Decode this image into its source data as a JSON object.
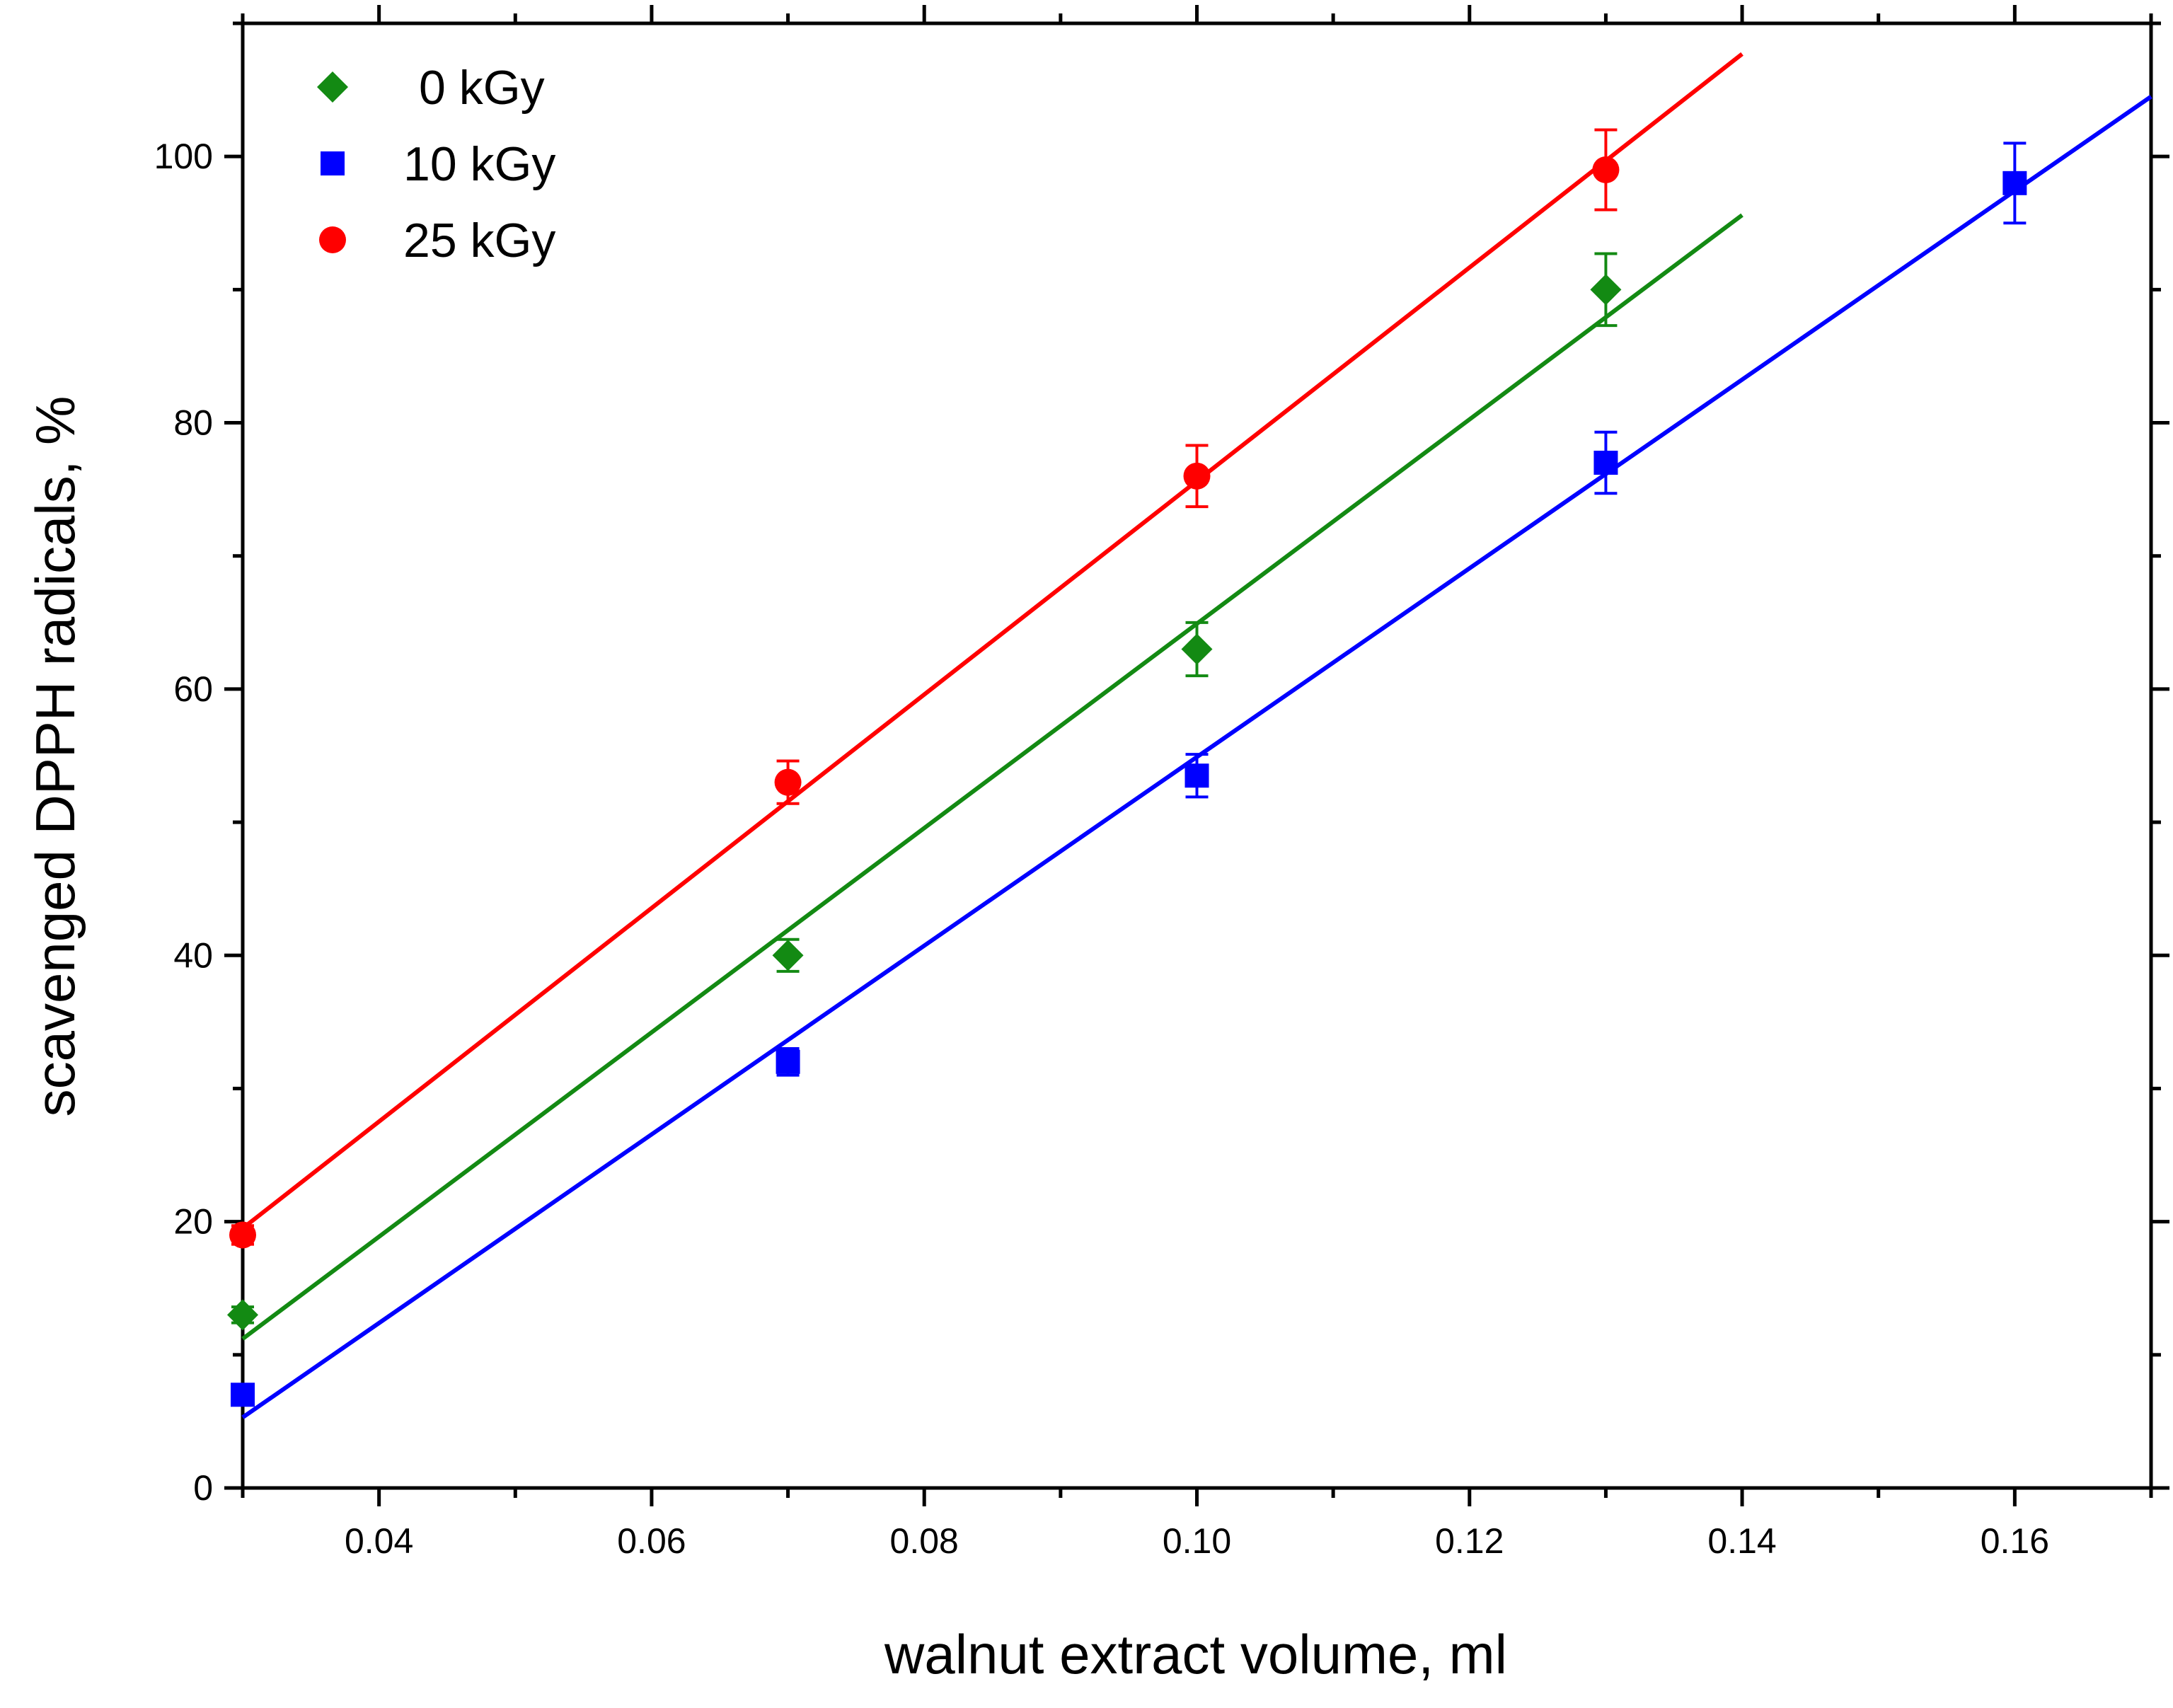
{
  "chart_data": {
    "type": "scatter",
    "title": "",
    "xlabel": "walnut extract volume, ml",
    "ylabel": "scavenged DPPH radicals,  %",
    "xlim": [
      0.03,
      0.17
    ],
    "ylim": [
      0,
      110
    ],
    "xticks": [
      0.04,
      0.06,
      0.08,
      0.1,
      0.12,
      0.14,
      0.16
    ],
    "xtick_labels": [
      "0.04",
      "0.06",
      "0.08",
      "0.10",
      "0.12",
      "0.14",
      "0.16"
    ],
    "yticks": [
      0,
      20,
      40,
      60,
      80,
      100
    ],
    "ytick_labels": [
      "0",
      "20",
      "40",
      "60",
      "80",
      "100"
    ],
    "grid": false,
    "legend_position": "top-left",
    "series": [
      {
        "name": "0 kGy",
        "marker": "diamond",
        "color": "#138a13",
        "x": [
          0.03,
          0.07,
          0.1,
          0.13
        ],
        "y": [
          13,
          40,
          63,
          90
        ],
        "err": [
          0.6,
          1.2,
          2.0,
          2.7
        ],
        "fit": {
          "x": [
            0.03,
            0.14
          ],
          "y": [
            11.2,
            95.6
          ]
        }
      },
      {
        "name": "10 kGy",
        "marker": "square",
        "color": "#0000ff",
        "x": [
          0.03,
          0.07,
          0.1,
          0.13,
          0.16
        ],
        "y": [
          7,
          32,
          53.5,
          77,
          98
        ],
        "err": [
          0.6,
          1.0,
          1.6,
          2.3,
          3.0
        ],
        "fit": {
          "x": [
            0.03,
            0.17
          ],
          "y": [
            5.3,
            104.5
          ]
        }
      },
      {
        "name": "25 kGy",
        "marker": "circle",
        "color": "#ff0000",
        "x": [
          0.03,
          0.07,
          0.1,
          0.13
        ],
        "y": [
          19,
          53,
          76,
          99
        ],
        "err": [
          0.7,
          1.6,
          2.3,
          3.0
        ],
        "fit": {
          "x": [
            0.03,
            0.14
          ],
          "y": [
            19.5,
            107.7
          ]
        }
      }
    ]
  }
}
